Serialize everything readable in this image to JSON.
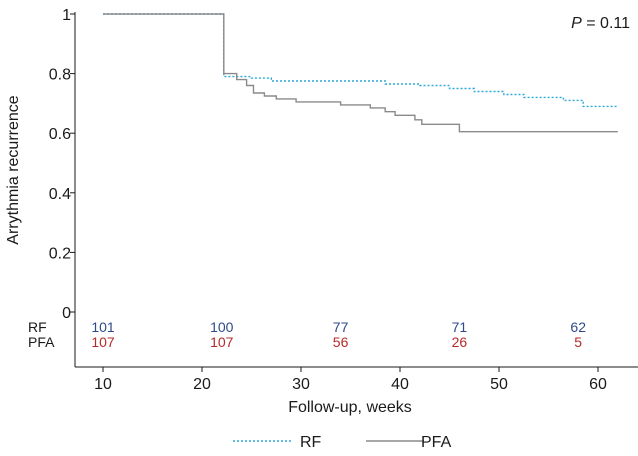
{
  "chart_data": {
    "type": "line",
    "ylabel": "Arrythmia recurrence",
    "xlabel": "Follow-up, weeks",
    "annotation": {
      "italic": "P",
      "text": " = 0.11"
    },
    "xlim": [
      10,
      62
    ],
    "ylim": [
      0,
      1
    ],
    "x_ticks": [
      10,
      20,
      30,
      40,
      50,
      60
    ],
    "y_ticks": [
      {
        "value": 0,
        "label": "0"
      },
      {
        "value": 0.2,
        "label": "0.2"
      },
      {
        "value": 0.4,
        "label": "0.4"
      },
      {
        "value": 0.6,
        "label": "0.6"
      },
      {
        "value": 0.8,
        "label": "0.8"
      },
      {
        "value": 1,
        "label": "1"
      }
    ],
    "series": [
      {
        "name": "RF",
        "color": "#2aa8d8",
        "style": "dotted",
        "points": [
          [
            10,
            1.0
          ],
          [
            22.2,
            1.0
          ],
          [
            22.2,
            0.79
          ],
          [
            25,
            0.79
          ],
          [
            25,
            0.785
          ],
          [
            27,
            0.785
          ],
          [
            27,
            0.775
          ],
          [
            38.5,
            0.775
          ],
          [
            38.5,
            0.765
          ],
          [
            42,
            0.765
          ],
          [
            42,
            0.76
          ],
          [
            45,
            0.76
          ],
          [
            45,
            0.75
          ],
          [
            47.5,
            0.75
          ],
          [
            47.5,
            0.74
          ],
          [
            50.5,
            0.74
          ],
          [
            50.5,
            0.73
          ],
          [
            52.5,
            0.73
          ],
          [
            52.5,
            0.72
          ],
          [
            56.5,
            0.72
          ],
          [
            56.5,
            0.71
          ],
          [
            58.5,
            0.71
          ],
          [
            58.5,
            0.69
          ],
          [
            62,
            0.69
          ]
        ]
      },
      {
        "name": "PFA",
        "color": "#8a8a8a",
        "style": "solid",
        "points": [
          [
            10,
            1.0
          ],
          [
            22.2,
            1.0
          ],
          [
            22.2,
            0.8
          ],
          [
            23.5,
            0.8
          ],
          [
            23.5,
            0.78
          ],
          [
            24.5,
            0.78
          ],
          [
            24.5,
            0.76
          ],
          [
            25.2,
            0.76
          ],
          [
            25.2,
            0.735
          ],
          [
            26.3,
            0.735
          ],
          [
            26.3,
            0.725
          ],
          [
            27.5,
            0.725
          ],
          [
            27.5,
            0.715
          ],
          [
            29.5,
            0.715
          ],
          [
            29.5,
            0.705
          ],
          [
            34,
            0.705
          ],
          [
            34,
            0.695
          ],
          [
            37,
            0.695
          ],
          [
            37,
            0.685
          ],
          [
            38.5,
            0.685
          ],
          [
            38.5,
            0.672
          ],
          [
            39.5,
            0.672
          ],
          [
            39.5,
            0.66
          ],
          [
            41.5,
            0.66
          ],
          [
            41.5,
            0.645
          ],
          [
            42.2,
            0.645
          ],
          [
            42.2,
            0.63
          ],
          [
            46,
            0.63
          ],
          [
            46,
            0.605
          ],
          [
            62,
            0.605
          ]
        ]
      }
    ],
    "risk_table": {
      "times": [
        10,
        22,
        34,
        46,
        58
      ],
      "rows": [
        {
          "label": "RF",
          "color": "#2e4a8a",
          "counts": [
            "101",
            "100",
            "77",
            "71",
            "62"
          ]
        },
        {
          "label": "PFA",
          "color": "#b52a2a",
          "counts": [
            "107",
            "107",
            "56",
            "26",
            "5"
          ]
        }
      ]
    },
    "legend": {
      "placement": "bottom-center"
    },
    "grid": false
  }
}
